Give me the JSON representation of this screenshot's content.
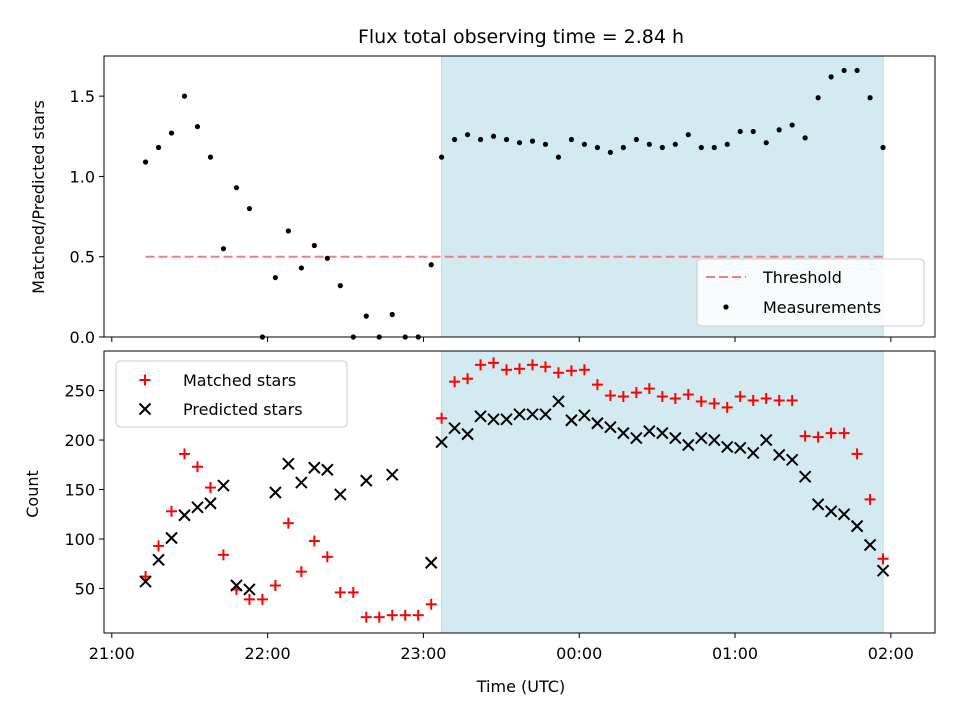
{
  "chart_data": {
    "type": "scatter",
    "title": "Flux total observing time = 2.84 h",
    "xlabel": "Time (UTC)",
    "x_tick_labels": [
      "21:00",
      "22:00",
      "23:00",
      "00:00",
      "01:00",
      "02:00"
    ],
    "highlight_region": {
      "x_start": "23:07",
      "x_end": "01:57",
      "color": "#d3eaf0"
    },
    "panels": [
      {
        "ylabel": "Matched/Predicted stars",
        "ylim": [
          0,
          1.75
        ],
        "y_ticks": [
          "0.0",
          "0.5",
          "1.0",
          "1.5"
        ],
        "legend_position": "bottom-right",
        "threshold": {
          "name": "Threshold",
          "value": 0.5,
          "color": "#f08080",
          "x_start": "21:13",
          "x_end": "01:57"
        },
        "series": [
          {
            "name": "Measurements",
            "marker": "dot",
            "color": "#000000",
            "x": [
              "21:13",
              "21:18",
              "21:23",
              "21:28",
              "21:33",
              "21:38",
              "21:43",
              "21:48",
              "21:53",
              "21:58",
              "22:03",
              "22:08",
              "22:13",
              "22:18",
              "22:23",
              "22:28",
              "22:33",
              "22:38",
              "22:43",
              "22:48",
              "22:53",
              "22:58",
              "23:03",
              "23:07",
              "23:12",
              "23:17",
              "23:22",
              "23:27",
              "23:32",
              "23:37",
              "23:42",
              "23:47",
              "23:52",
              "23:57",
              "00:02",
              "00:07",
              "00:12",
              "00:17",
              "00:22",
              "00:27",
              "00:32",
              "00:37",
              "00:42",
              "00:47",
              "00:52",
              "00:57",
              "01:02",
              "01:07",
              "01:12",
              "01:17",
              "01:22",
              "01:27",
              "01:32",
              "01:37",
              "01:42",
              "01:47",
              "01:52",
              "01:57"
            ],
            "y": [
              1.09,
              1.18,
              1.27,
              1.5,
              1.31,
              1.12,
              0.55,
              0.93,
              0.8,
              0.0,
              0.37,
              0.66,
              0.43,
              0.57,
              0.49,
              0.32,
              0.0,
              0.13,
              0.0,
              0.14,
              0.0,
              0.0,
              0.45,
              1.12,
              1.23,
              1.26,
              1.23,
              1.25,
              1.23,
              1.21,
              1.22,
              1.2,
              1.12,
              1.23,
              1.2,
              1.18,
              1.15,
              1.18,
              1.23,
              1.2,
              1.18,
              1.2,
              1.26,
              1.18,
              1.18,
              1.2,
              1.28,
              1.28,
              1.21,
              1.29,
              1.32,
              1.24,
              1.49,
              1.62,
              1.66,
              1.66,
              1.49,
              1.18
            ]
          }
        ]
      },
      {
        "ylabel": "Count",
        "ylim": [
          5,
          290
        ],
        "y_ticks": [
          "50",
          "100",
          "150",
          "200",
          "250"
        ],
        "legend_position": "top-left",
        "series": [
          {
            "name": "Matched stars",
            "marker": "plus",
            "color": "#ff0000",
            "x": [
              "21:13",
              "21:18",
              "21:23",
              "21:28",
              "21:33",
              "21:38",
              "21:43",
              "21:48",
              "21:53",
              "21:58",
              "22:03",
              "22:08",
              "22:13",
              "22:18",
              "22:23",
              "22:28",
              "22:33",
              "22:38",
              "22:43",
              "22:48",
              "22:53",
              "22:58",
              "23:03",
              "23:07",
              "23:12",
              "23:17",
              "23:22",
              "23:27",
              "23:32",
              "23:37",
              "23:42",
              "23:47",
              "23:52",
              "23:57",
              "00:02",
              "00:07",
              "00:12",
              "00:17",
              "00:22",
              "00:27",
              "00:32",
              "00:37",
              "00:42",
              "00:47",
              "00:52",
              "00:57",
              "01:02",
              "01:07",
              "01:12",
              "01:17",
              "01:22",
              "01:27",
              "01:32",
              "01:37",
              "01:42",
              "01:47",
              "01:52",
              "01:57"
            ],
            "y": [
              62,
              93,
              128,
              186,
              173,
              152,
              84,
              49,
              39,
              39,
              53,
              116,
              67,
              98,
              82,
              46,
              46,
              21,
              21,
              23,
              23,
              23,
              34,
              222,
              259,
              262,
              276,
              278,
              271,
              272,
              276,
              274,
              268,
              270,
              271,
              256,
              245,
              244,
              248,
              252,
              244,
              242,
              246,
              239,
              237,
              233,
              244,
              240,
              242,
              240,
              240,
              204,
              203,
              207,
              207,
              186,
              140,
              80
            ]
          },
          {
            "name": "Predicted stars",
            "marker": "x",
            "color": "#000000",
            "x": [
              "21:13",
              "21:18",
              "21:23",
              "21:28",
              "21:33",
              "21:38",
              "21:43",
              "21:48",
              "21:53",
              "22:03",
              "22:08",
              "22:13",
              "22:18",
              "22:23",
              "22:28",
              "22:38",
              "22:48",
              "23:03",
              "23:07",
              "23:12",
              "23:17",
              "23:22",
              "23:27",
              "23:32",
              "23:37",
              "23:42",
              "23:47",
              "23:52",
              "23:57",
              "00:02",
              "00:07",
              "00:12",
              "00:17",
              "00:22",
              "00:27",
              "00:32",
              "00:37",
              "00:42",
              "00:47",
              "00:52",
              "00:57",
              "01:02",
              "01:07",
              "01:12",
              "01:17",
              "01:22",
              "01:27",
              "01:32",
              "01:37",
              "01:42",
              "01:47",
              "01:52",
              "01:57"
            ],
            "y": [
              57,
              79,
              101,
              124,
              132,
              136,
              154,
              53,
              49,
              147,
              176,
              157,
              172,
              170,
              145,
              159,
              165,
              76,
              198,
              212,
              206,
              224,
              221,
              221,
              226,
              226,
              226,
              239,
              220,
              225,
              217,
              213,
              207,
              202,
              209,
              207,
              202,
              195,
              202,
              200,
              193,
              192,
              187,
              200,
              185,
              180,
              163,
              135,
              128,
              125,
              113,
              94,
              68
            ]
          }
        ]
      }
    ]
  }
}
